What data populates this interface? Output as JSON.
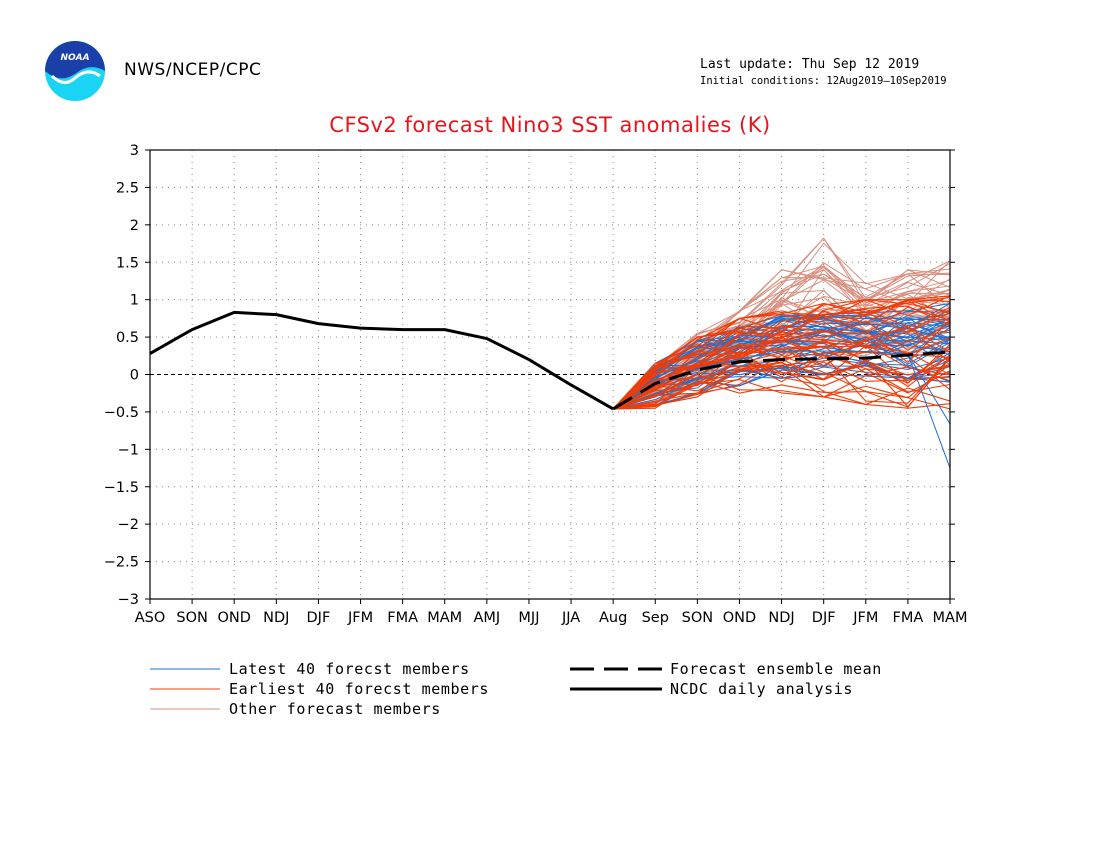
{
  "header": {
    "logo_text": "NOAA",
    "org": "NWS/NCEP/CPC",
    "last_update": "Last update: Thu Sep 12 2019",
    "initial_conditions": "Initial conditions: 12Aug2019–10Sep2019"
  },
  "colors": {
    "latest": "#1f6fd0",
    "earliest": "#f03c08",
    "other": "#d89080",
    "mean": "#000000",
    "analysis": "#000000",
    "title": "#e8141c"
  },
  "chart_data": {
    "type": "line",
    "title": "CFSv2 forecast Nino3 SST anomalies (K)",
    "categories": [
      "ASO",
      "SON",
      "OND",
      "NDJ",
      "DJF",
      "JFM",
      "FMA",
      "MAM",
      "AMJ",
      "MJJ",
      "JJA",
      "Aug",
      "Sep",
      "SON",
      "OND",
      "NDJ",
      "DJF",
      "JFM",
      "FMA",
      "MAM"
    ],
    "ylim": [
      -3,
      3
    ],
    "yticks": [
      "3",
      "2.5",
      "2",
      "1.5",
      "1",
      "0.5",
      "0",
      "−0.5",
      "−1",
      "−1.5",
      "−2",
      "−2.5",
      "−3"
    ],
    "grid": true,
    "zero_line": true,
    "legend_position": "bottom",
    "series": [
      {
        "name": "NCDC daily analysis",
        "style": "solid-thick",
        "values": [
          0.28,
          0.6,
          0.83,
          0.8,
          0.68,
          0.62,
          0.6,
          0.6,
          0.48,
          0.2,
          -0.14,
          -0.46,
          null,
          null,
          null,
          null,
          null,
          null,
          null,
          null
        ]
      },
      {
        "name": "Forecast ensemble mean",
        "style": "dashed-thick",
        "values": [
          null,
          null,
          null,
          null,
          null,
          null,
          null,
          null,
          null,
          null,
          null,
          -0.46,
          -0.12,
          0.06,
          0.17,
          0.2,
          0.21,
          0.22,
          0.26,
          0.3
        ]
      },
      {
        "name": "Latest 40 forecst members",
        "style": "thin",
        "color": "#1f6fd0",
        "range_start": [
          -0.42,
          -0.25,
          -0.15,
          -0.05,
          0.0,
          -0.02,
          -0.05,
          -0.1
        ],
        "range_end": [
          0.15,
          0.45,
          0.65,
          0.8,
          0.8,
          0.85,
          0.85,
          0.95
        ],
        "extremes": [
          -0.66,
          -1.25
        ]
      },
      {
        "name": "Earliest 40 forecst members",
        "style": "thin",
        "color": "#f03c08",
        "range_start": [
          -0.45,
          -0.3,
          -0.25,
          -0.25,
          -0.3,
          -0.4,
          -0.45,
          -0.5
        ],
        "range_end": [
          0.15,
          0.5,
          0.75,
          0.85,
          0.95,
          1.0,
          1.0,
          1.05
        ]
      },
      {
        "name": "Other forecast members",
        "style": "thin",
        "color": "#d89080",
        "range_start": [
          -0.4,
          -0.1,
          0.1,
          0.2,
          0.2,
          0.25,
          0.3,
          0.3
        ],
        "range_end": [
          0.1,
          0.55,
          0.85,
          1.4,
          1.82,
          1.25,
          1.4,
          1.52
        ]
      }
    ]
  },
  "legend": {
    "latest": "Latest 40 forecst members",
    "earliest": "Earliest 40 forecst members",
    "other": "Other forecast members",
    "mean": "Forecast ensemble mean",
    "analysis": "NCDC daily analysis"
  }
}
